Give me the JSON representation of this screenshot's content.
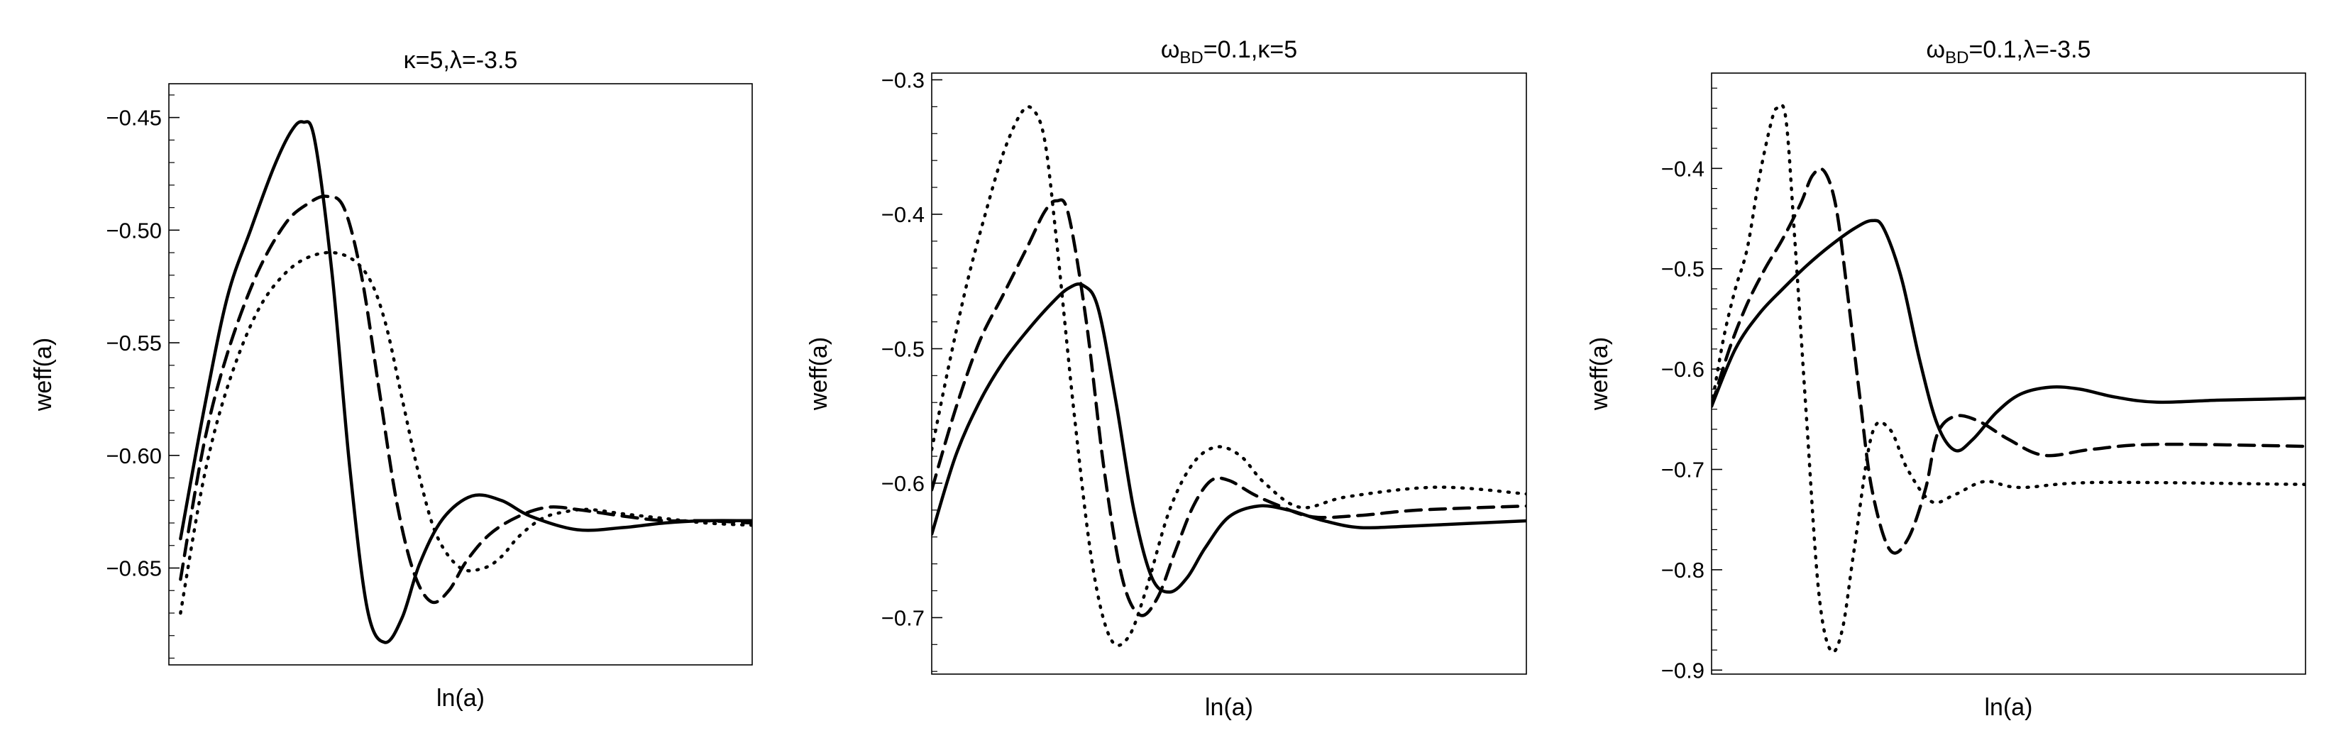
{
  "chart_data": [
    {
      "type": "line",
      "title": "κ=5,λ=-3.5",
      "xlabel": "ln(a)",
      "ylabel": "weff(a)",
      "xlim": [
        0,
        1
      ],
      "ylim": [
        -0.693,
        -0.435
      ],
      "y_ticks": [
        -0.65,
        -0.6,
        -0.55,
        -0.5,
        -0.45
      ],
      "y_tick_labels": [
        "−0.65",
        "−0.60",
        "−0.55",
        "−0.50",
        "−0.45"
      ],
      "x_ticks_visible": false,
      "grid": false,
      "legend": "none",
      "series": [
        {
          "style": "solid",
          "x": [
            0.02,
            0.06,
            0.1,
            0.14,
            0.18,
            0.21,
            0.23,
            0.25,
            0.28,
            0.31,
            0.34,
            0.37,
            0.4,
            0.43,
            0.47,
            0.52,
            0.57,
            0.62,
            0.7,
            0.78,
            0.85,
            0.92,
            1.0
          ],
          "y": [
            -0.637,
            -0.58,
            -0.53,
            -0.5,
            -0.472,
            -0.456,
            -0.452,
            -0.46,
            -0.52,
            -0.605,
            -0.668,
            -0.683,
            -0.672,
            -0.648,
            -0.628,
            -0.618,
            -0.62,
            -0.627,
            -0.633,
            -0.632,
            -0.63,
            -0.629,
            -0.629
          ]
        },
        {
          "style": "dashed",
          "x": [
            0.02,
            0.06,
            0.1,
            0.15,
            0.2,
            0.24,
            0.27,
            0.3,
            0.33,
            0.36,
            0.39,
            0.42,
            0.45,
            0.48,
            0.51,
            0.55,
            0.6,
            0.65,
            0.7,
            0.78,
            0.85,
            0.92,
            1.0
          ],
          "y": [
            -0.655,
            -0.595,
            -0.555,
            -0.52,
            -0.497,
            -0.488,
            -0.485,
            -0.49,
            -0.52,
            -0.57,
            -0.62,
            -0.652,
            -0.665,
            -0.66,
            -0.647,
            -0.635,
            -0.627,
            -0.623,
            -0.624,
            -0.627,
            -0.629,
            -0.629,
            -0.63
          ]
        },
        {
          "style": "dotted",
          "x": [
            0.02,
            0.06,
            0.1,
            0.15,
            0.2,
            0.25,
            0.3,
            0.34,
            0.37,
            0.4,
            0.43,
            0.46,
            0.5,
            0.54,
            0.57,
            0.6,
            0.64,
            0.68,
            0.72,
            0.78,
            0.85,
            0.92,
            1.0
          ],
          "y": [
            -0.67,
            -0.61,
            -0.57,
            -0.537,
            -0.519,
            -0.511,
            -0.511,
            -0.52,
            -0.54,
            -0.575,
            -0.61,
            -0.636,
            -0.65,
            -0.65,
            -0.645,
            -0.636,
            -0.628,
            -0.625,
            -0.624,
            -0.626,
            -0.628,
            -0.63,
            -0.631
          ]
        }
      ]
    },
    {
      "type": "line",
      "title": "ωBD=0.1,κ=5",
      "title_parts": {
        "symbol": "ω",
        "subscript": "BD",
        "rest": "=0.1,κ=5"
      },
      "xlabel": "ln(a)",
      "ylabel": "weff(a)",
      "xlim": [
        0,
        1
      ],
      "ylim": [
        -0.742,
        -0.295
      ],
      "y_ticks": [
        -0.7,
        -0.6,
        -0.5,
        -0.4,
        -0.3
      ],
      "y_tick_labels": [
        "−0.7",
        "−0.6",
        "−0.5",
        "−0.4",
        "−0.3"
      ],
      "x_ticks_visible": false,
      "grid": false,
      "legend": "none",
      "series": [
        {
          "style": "solid",
          "x": [
            0.0,
            0.04,
            0.08,
            0.12,
            0.16,
            0.2,
            0.23,
            0.255,
            0.28,
            0.31,
            0.34,
            0.37,
            0.4,
            0.43,
            0.46,
            0.5,
            0.55,
            0.6,
            0.66,
            0.72,
            0.8,
            0.9,
            1.0
          ],
          "y": [
            -0.638,
            -0.58,
            -0.54,
            -0.51,
            -0.487,
            -0.467,
            -0.455,
            -0.453,
            -0.47,
            -0.54,
            -0.62,
            -0.67,
            -0.681,
            -0.67,
            -0.648,
            -0.625,
            -0.617,
            -0.62,
            -0.628,
            -0.633,
            -0.632,
            -0.63,
            -0.628
          ]
        },
        {
          "style": "dashed",
          "x": [
            0.0,
            0.04,
            0.08,
            0.12,
            0.16,
            0.19,
            0.21,
            0.23,
            0.26,
            0.29,
            0.32,
            0.35,
            0.38,
            0.41,
            0.44,
            0.47,
            0.5,
            0.54,
            0.58,
            0.64,
            0.72,
            0.82,
            1.0
          ],
          "y": [
            -0.605,
            -0.545,
            -0.495,
            -0.46,
            -0.425,
            -0.398,
            -0.39,
            -0.4,
            -0.48,
            -0.59,
            -0.67,
            -0.698,
            -0.685,
            -0.65,
            -0.617,
            -0.598,
            -0.598,
            -0.608,
            -0.616,
            -0.625,
            -0.624,
            -0.62,
            -0.617
          ]
        },
        {
          "style": "dotted",
          "x": [
            0.0,
            0.03,
            0.06,
            0.09,
            0.12,
            0.15,
            0.17,
            0.19,
            0.21,
            0.24,
            0.27,
            0.3,
            0.33,
            0.36,
            0.4,
            0.44,
            0.48,
            0.52,
            0.56,
            0.62,
            0.7,
            0.85,
            1.0
          ],
          "y": [
            -0.575,
            -0.51,
            -0.45,
            -0.4,
            -0.355,
            -0.325,
            -0.322,
            -0.345,
            -0.42,
            -0.55,
            -0.66,
            -0.715,
            -0.715,
            -0.68,
            -0.62,
            -0.585,
            -0.573,
            -0.58,
            -0.6,
            -0.618,
            -0.61,
            -0.603,
            -0.608
          ]
        }
      ]
    },
    {
      "type": "line",
      "title": "ωBD=0.1,λ=-3.5",
      "title_parts": {
        "symbol": "ω",
        "subscript": "BD",
        "rest": "=0.1,λ=-3.5"
      },
      "xlabel": "ln(a)",
      "ylabel": "weff(a)",
      "xlim": [
        0,
        1
      ],
      "ylim": [
        -0.904,
        -0.305
      ],
      "y_ticks": [
        -0.9,
        -0.8,
        -0.7,
        -0.6,
        -0.5,
        -0.4
      ],
      "y_tick_labels": [
        "−0.9",
        "−0.8",
        "−0.7",
        "−0.6",
        "−0.5",
        "−0.4"
      ],
      "x_ticks_visible": false,
      "grid": false,
      "legend": "none",
      "series": [
        {
          "style": "solid",
          "x": [
            0.0,
            0.04,
            0.08,
            0.12,
            0.16,
            0.2,
            0.24,
            0.27,
            0.29,
            0.32,
            0.35,
            0.38,
            0.41,
            0.44,
            0.48,
            0.52,
            0.57,
            0.62,
            0.68,
            0.75,
            0.85,
            0.93,
            1.0
          ],
          "y": [
            -0.637,
            -0.58,
            -0.545,
            -0.52,
            -0.497,
            -0.477,
            -0.46,
            -0.452,
            -0.46,
            -0.51,
            -0.59,
            -0.655,
            -0.681,
            -0.67,
            -0.643,
            -0.625,
            -0.618,
            -0.62,
            -0.628,
            -0.633,
            -0.631,
            -0.63,
            -0.629
          ]
        },
        {
          "style": "dashed",
          "x": [
            0.0,
            0.03,
            0.06,
            0.09,
            0.12,
            0.15,
            0.17,
            0.19,
            0.21,
            0.23,
            0.25,
            0.27,
            0.3,
            0.33,
            0.36,
            0.38,
            0.41,
            0.45,
            0.5,
            0.56,
            0.64,
            0.75,
            1.0
          ],
          "y": [
            -0.637,
            -0.58,
            -0.535,
            -0.5,
            -0.47,
            -0.435,
            -0.407,
            -0.403,
            -0.44,
            -0.53,
            -0.63,
            -0.72,
            -0.78,
            -0.77,
            -0.72,
            -0.665,
            -0.647,
            -0.652,
            -0.67,
            -0.686,
            -0.68,
            -0.675,
            -0.677
          ]
        },
        {
          "style": "dotted",
          "x": [
            0.0,
            0.02,
            0.04,
            0.06,
            0.08,
            0.1,
            0.11,
            0.125,
            0.14,
            0.16,
            0.18,
            0.2,
            0.22,
            0.24,
            0.27,
            0.3,
            0.33,
            0.37,
            0.41,
            0.46,
            0.52,
            0.65,
            1.0
          ],
          "y": [
            -0.637,
            -0.57,
            -0.52,
            -0.48,
            -0.41,
            -0.355,
            -0.34,
            -0.35,
            -0.47,
            -0.65,
            -0.82,
            -0.88,
            -0.86,
            -0.78,
            -0.665,
            -0.66,
            -0.7,
            -0.732,
            -0.725,
            -0.712,
            -0.718,
            -0.713,
            -0.715
          ]
        }
      ]
    }
  ]
}
